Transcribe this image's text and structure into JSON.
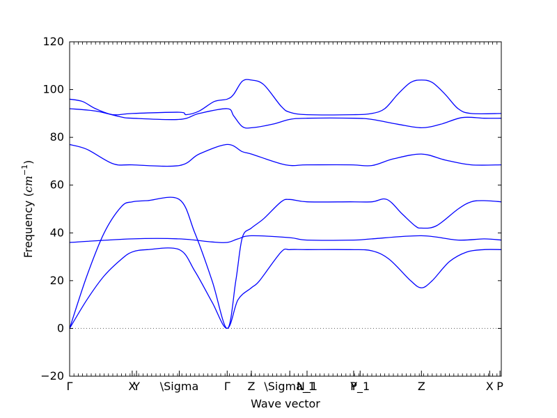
{
  "chart_data": {
    "type": "line",
    "title": "",
    "xlabel": "Wave vector",
    "ylabel": "Frequency (cm⁻¹)",
    "ylabel_main": "Frequency (",
    "ylabel_unit": "cm",
    "ylabel_exp": "−1",
    "ylabel_close": ")",
    "xlim": [
      0,
      1
    ],
    "ylim": [
      -20,
      120
    ],
    "yticks": [
      -20,
      0,
      20,
      40,
      60,
      80,
      100,
      120
    ],
    "ytick_labels": [
      "−20",
      "0",
      "20",
      "40",
      "60",
      "80",
      "100",
      "120"
    ],
    "zero_line": {
      "y": 0,
      "style": "dotted",
      "color": "#555555"
    },
    "high_symmetry_points": [
      {
        "x": 0.0,
        "label": "Γ"
      },
      {
        "x": 0.145,
        "label": "X"
      },
      {
        "x": 0.155,
        "label": "Y"
      },
      {
        "x": 0.254,
        "label": "\\Sigma"
      },
      {
        "x": 0.365,
        "label": "Γ"
      },
      {
        "x": 0.421,
        "label": "Z"
      },
      {
        "x": 0.51,
        "label": "\\Sigma_1"
      },
      {
        "x": 0.55,
        "label": "N_1"
      },
      {
        "x": 0.658,
        "label": "P"
      },
      {
        "x": 0.673,
        "label": "Y_1"
      },
      {
        "x": 0.815,
        "label": "Z"
      },
      {
        "x": 0.973,
        "label": "X"
      },
      {
        "x": 0.997,
        "label": "P"
      }
    ],
    "series_color": "#0000ff",
    "series": [
      {
        "points": [
          [
            0,
            0
          ],
          [
            0.04,
            12
          ],
          [
            0.08,
            22
          ],
          [
            0.12,
            29
          ],
          [
            0.145,
            32
          ],
          [
            0.18,
            33
          ],
          [
            0.254,
            33
          ],
          [
            0.29,
            24
          ],
          [
            0.33,
            11
          ],
          [
            0.365,
            0
          ],
          [
            0.39,
            12
          ],
          [
            0.421,
            17
          ],
          [
            0.44,
            20
          ],
          [
            0.49,
            32
          ],
          [
            0.51,
            33
          ],
          [
            0.55,
            33
          ],
          [
            0.65,
            33
          ],
          [
            0.7,
            32.5
          ],
          [
            0.74,
            29
          ],
          [
            0.79,
            20
          ],
          [
            0.815,
            17
          ],
          [
            0.84,
            20
          ],
          [
            0.88,
            28
          ],
          [
            0.92,
            32
          ],
          [
            0.96,
            33
          ],
          [
            1.0,
            33
          ]
        ]
      },
      {
        "points": [
          [
            0,
            0
          ],
          [
            0.04,
            22
          ],
          [
            0.08,
            40
          ],
          [
            0.12,
            51
          ],
          [
            0.145,
            53
          ],
          [
            0.18,
            53.5
          ],
          [
            0.254,
            54
          ],
          [
            0.29,
            40
          ],
          [
            0.33,
            20
          ],
          [
            0.365,
            0
          ],
          [
            0.385,
            20
          ],
          [
            0.4,
            38
          ],
          [
            0.421,
            42
          ],
          [
            0.45,
            46
          ],
          [
            0.49,
            53
          ],
          [
            0.51,
            54
          ],
          [
            0.55,
            53
          ],
          [
            0.65,
            53
          ],
          [
            0.7,
            53
          ],
          [
            0.735,
            54
          ],
          [
            0.77,
            48
          ],
          [
            0.8,
            43
          ],
          [
            0.815,
            42
          ],
          [
            0.85,
            43
          ],
          [
            0.9,
            50
          ],
          [
            0.93,
            53
          ],
          [
            0.96,
            53.5
          ],
          [
            1.0,
            53
          ]
        ]
      },
      {
        "points": [
          [
            0,
            36
          ],
          [
            0.145,
            37.5
          ],
          [
            0.254,
            37.5
          ],
          [
            0.33,
            36.2
          ],
          [
            0.365,
            36
          ],
          [
            0.39,
            37.5
          ],
          [
            0.421,
            38.8
          ],
          [
            0.51,
            38
          ],
          [
            0.55,
            37
          ],
          [
            0.658,
            37
          ],
          [
            0.7,
            37.5
          ],
          [
            0.815,
            38.8
          ],
          [
            0.9,
            37
          ],
          [
            0.96,
            37.5
          ],
          [
            1.0,
            37
          ]
        ]
      },
      {
        "points": [
          [
            0,
            77
          ],
          [
            0.04,
            75
          ],
          [
            0.1,
            69
          ],
          [
            0.145,
            68.5
          ],
          [
            0.254,
            68.2
          ],
          [
            0.3,
            73
          ],
          [
            0.365,
            77
          ],
          [
            0.4,
            74
          ],
          [
            0.421,
            73
          ],
          [
            0.5,
            68.5
          ],
          [
            0.55,
            68.5
          ],
          [
            0.65,
            68.5
          ],
          [
            0.7,
            68.2
          ],
          [
            0.75,
            71
          ],
          [
            0.815,
            73
          ],
          [
            0.87,
            70.5
          ],
          [
            0.93,
            68.5
          ],
          [
            1.0,
            68.5
          ]
        ]
      },
      {
        "points": [
          [
            0,
            92
          ],
          [
            0.06,
            91
          ],
          [
            0.12,
            88.5
          ],
          [
            0.145,
            88
          ],
          [
            0.254,
            87.5
          ],
          [
            0.3,
            90
          ],
          [
            0.365,
            92
          ],
          [
            0.38,
            89
          ],
          [
            0.4,
            84.5
          ],
          [
            0.421,
            84
          ],
          [
            0.47,
            85.5
          ],
          [
            0.51,
            87.5
          ],
          [
            0.55,
            88
          ],
          [
            0.658,
            88
          ],
          [
            0.7,
            87.5
          ],
          [
            0.76,
            85.5
          ],
          [
            0.815,
            84
          ],
          [
            0.86,
            85.5
          ],
          [
            0.91,
            88.3
          ],
          [
            0.96,
            88
          ],
          [
            1.0,
            88
          ]
        ]
      },
      {
        "points": [
          [
            0,
            96
          ],
          [
            0.03,
            95
          ],
          [
            0.06,
            92
          ],
          [
            0.1,
            89.5
          ],
          [
            0.145,
            90
          ],
          [
            0.254,
            90.5
          ],
          [
            0.27,
            89.5
          ],
          [
            0.3,
            91
          ],
          [
            0.335,
            95
          ],
          [
            0.365,
            96
          ],
          [
            0.38,
            98
          ],
          [
            0.4,
            103.5
          ],
          [
            0.421,
            104
          ],
          [
            0.45,
            102
          ],
          [
            0.49,
            93
          ],
          [
            0.51,
            90.5
          ],
          [
            0.55,
            89.5
          ],
          [
            0.658,
            89.5
          ],
          [
            0.7,
            90
          ],
          [
            0.73,
            92
          ],
          [
            0.76,
            98
          ],
          [
            0.79,
            103
          ],
          [
            0.815,
            104
          ],
          [
            0.84,
            103
          ],
          [
            0.87,
            98
          ],
          [
            0.9,
            92
          ],
          [
            0.93,
            90
          ],
          [
            1.0,
            90
          ]
        ]
      }
    ]
  }
}
